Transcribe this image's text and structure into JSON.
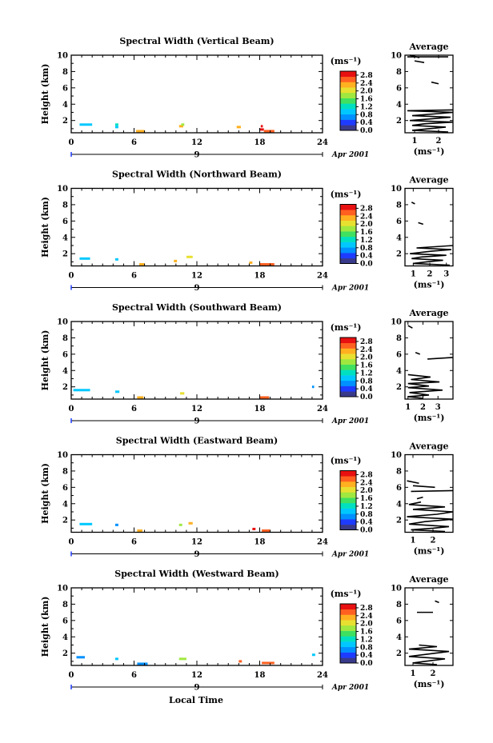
{
  "figure": {
    "x_axis_title": "Local Time",
    "colorbar_unit": "(ms⁻¹)",
    "colorbar_ticks": [
      "0.0",
      "0.4",
      "0.8",
      "1.2",
      "1.6",
      "2.0",
      "2.4",
      "2.8"
    ],
    "colorbar_range": [
      0,
      3.0
    ],
    "day_marker": "9",
    "date_label": "Apr 2001",
    "avg_title": "Average",
    "avg_xlabel": "(ms⁻¹)"
  },
  "colors": {
    "palette": [
      "#3a3a8c",
      "#1e3cff",
      "#0090ff",
      "#00c8ff",
      "#00e0c0",
      "#40e060",
      "#a0e840",
      "#e8e030",
      "#ffb020",
      "#ff6020",
      "#e81010"
    ]
  },
  "chart_data": [
    {
      "type": "heatmap",
      "title": "Spectral Width (Vertical Beam)",
      "ylabel": "Height (km)",
      "xlabel": "Local Time",
      "xlim": [
        0,
        24
      ],
      "xticks": [
        0,
        6,
        12,
        18,
        24
      ],
      "xtick_labels": [
        "0",
        "6",
        "12",
        "18",
        "24"
      ],
      "ylim": [
        0.5,
        10
      ],
      "yticks": [
        2,
        4,
        6,
        8,
        10
      ],
      "cells": [
        {
          "t": 0.8,
          "h": 1.5,
          "dt": 1.2,
          "v": 1.0
        },
        {
          "t": 4.2,
          "h": 1.5,
          "dt": 0.3,
          "v": 1.1
        },
        {
          "t": 4.2,
          "h": 1.2,
          "dt": 0.3,
          "v": 0.9
        },
        {
          "t": 6.2,
          "h": 0.7,
          "dt": 0.8,
          "v": 2.4
        },
        {
          "t": 10.3,
          "h": 1.3,
          "dt": 0.4,
          "v": 2.2
        },
        {
          "t": 10.5,
          "h": 1.5,
          "dt": 0.3,
          "v": 1.8
        },
        {
          "t": 15.8,
          "h": 1.2,
          "dt": 0.4,
          "v": 2.2
        },
        {
          "t": 18.0,
          "h": 0.9,
          "dt": 0.4,
          "v": 2.9
        },
        {
          "t": 18.4,
          "h": 0.7,
          "dt": 1.0,
          "v": 2.6
        },
        {
          "t": 18.1,
          "h": 1.3,
          "dt": 0.2,
          "v": 3.0
        }
      ],
      "avg": {
        "xlim": [
          0.6,
          2.6
        ],
        "xticks": [
          1,
          2
        ],
        "xtick_labels": [
          "1",
          "2"
        ],
        "profile": [
          [
            2.4,
            0.6
          ],
          [
            0.9,
            0.8
          ],
          [
            1.6,
            1.0
          ],
          [
            2.3,
            1.2
          ],
          [
            0.9,
            1.4
          ],
          [
            1.4,
            1.6
          ],
          [
            2.6,
            1.8
          ],
          [
            0.8,
            2.0
          ],
          [
            1.7,
            2.2
          ],
          [
            2.5,
            2.4
          ],
          [
            0.9,
            2.6
          ],
          [
            1.8,
            2.8
          ],
          [
            2.6,
            3.0
          ],
          [
            0.7,
            3.2
          ],
          [
            2.6,
            3.3
          ]
        ],
        "segments": [
          [
            [
              1.7,
              6.7
            ],
            [
              2.0,
              6.5
            ]
          ],
          [
            [
              1.0,
              9.3
            ],
            [
              1.4,
              9.1
            ]
          ],
          [
            [
              0.7,
              9.8
            ],
            [
              2.4,
              9.8
            ]
          ],
          [
            [
              0.8,
              10.0
            ],
            [
              1.2,
              9.7
            ]
          ]
        ]
      }
    },
    {
      "type": "heatmap",
      "title": "Spectral Width (Northward Beam)",
      "ylabel": "Height (km)",
      "xlabel": "Local Time",
      "xlim": [
        0,
        24
      ],
      "xticks": [
        0,
        6,
        12,
        18,
        24
      ],
      "xtick_labels": [
        "0",
        "6",
        "12",
        "18",
        "24"
      ],
      "ylim": [
        0.5,
        10
      ],
      "yticks": [
        2,
        4,
        6,
        8,
        10
      ],
      "cells": [
        {
          "t": 0.8,
          "h": 1.4,
          "dt": 1.0,
          "v": 0.9
        },
        {
          "t": 4.2,
          "h": 1.3,
          "dt": 0.3,
          "v": 1.0
        },
        {
          "t": 6.5,
          "h": 0.7,
          "dt": 0.5,
          "v": 2.2
        },
        {
          "t": 9.8,
          "h": 1.1,
          "dt": 0.3,
          "v": 2.3
        },
        {
          "t": 11.0,
          "h": 1.6,
          "dt": 0.6,
          "v": 2.0
        },
        {
          "t": 17.0,
          "h": 0.9,
          "dt": 0.3,
          "v": 2.4
        },
        {
          "t": 18.0,
          "h": 0.7,
          "dt": 1.4,
          "v": 2.5
        }
      ],
      "avg": {
        "xlim": [
          0.5,
          3.4
        ],
        "xticks": [
          1,
          2,
          3
        ],
        "xtick_labels": [
          "1",
          "2",
          "3"
        ],
        "profile": [
          [
            3.2,
            0.6
          ],
          [
            1.0,
            0.8
          ],
          [
            1.8,
            1.0
          ],
          [
            2.8,
            1.2
          ],
          [
            0.9,
            1.4
          ],
          [
            1.5,
            1.6
          ],
          [
            3.0,
            1.8
          ],
          [
            0.8,
            2.0
          ],
          [
            2.1,
            2.3
          ],
          [
            3.3,
            2.5
          ],
          [
            1.2,
            2.7
          ],
          [
            3.4,
            3.0
          ]
        ],
        "segments": [
          [
            [
              1.3,
              5.8
            ],
            [
              1.6,
              5.6
            ]
          ],
          [
            [
              0.9,
              8.3
            ],
            [
              1.1,
              8.1
            ]
          ]
        ]
      }
    },
    {
      "type": "heatmap",
      "title": "Spectral Width (Southward Beam)",
      "ylabel": "Height (km)",
      "xlabel": "Local Time",
      "xlim": [
        0,
        24
      ],
      "xticks": [
        0,
        6,
        12,
        18,
        24
      ],
      "xtick_labels": [
        "0",
        "6",
        "12",
        "18",
        "24"
      ],
      "ylim": [
        0.5,
        10
      ],
      "yticks": [
        2,
        4,
        6,
        8,
        10
      ],
      "cells": [
        {
          "t": 0.2,
          "h": 1.6,
          "dt": 1.6,
          "v": 0.9
        },
        {
          "t": 4.2,
          "h": 1.4,
          "dt": 0.4,
          "v": 1.0
        },
        {
          "t": 6.3,
          "h": 0.7,
          "dt": 0.6,
          "v": 2.3
        },
        {
          "t": 10.4,
          "h": 1.2,
          "dt": 0.4,
          "v": 2.0
        },
        {
          "t": 18.0,
          "h": 0.7,
          "dt": 0.9,
          "v": 2.6
        },
        {
          "t": 23.0,
          "h": 2.0,
          "dt": 0.2,
          "v": 0.8
        }
      ],
      "avg": {
        "xlim": [
          0.8,
          4.0
        ],
        "xticks": [
          1,
          2,
          3
        ],
        "xtick_labels": [
          "1",
          "2",
          "3"
        ],
        "profile": [
          [
            2.0,
            0.6
          ],
          [
            1.0,
            0.8
          ],
          [
            2.4,
            1.0
          ],
          [
            1.1,
            1.3
          ],
          [
            3.3,
            1.6
          ],
          [
            1.0,
            1.9
          ],
          [
            2.4,
            2.1
          ],
          [
            1.0,
            2.4
          ],
          [
            3.1,
            2.6
          ],
          [
            1.2,
            2.9
          ],
          [
            2.5,
            3.2
          ],
          [
            1.0,
            3.5
          ]
        ],
        "segments": [
          [
            [
              2.3,
              5.4
            ],
            [
              4.0,
              5.6
            ]
          ],
          [
            [
              1.5,
              6.2
            ],
            [
              1.8,
              6.0
            ]
          ],
          [
            [
              1.0,
              9.5
            ],
            [
              1.3,
              9.2
            ]
          ]
        ]
      }
    },
    {
      "type": "heatmap",
      "title": "Spectral Width (Eastward Beam)",
      "ylabel": "Height (km)",
      "xlabel": "Local Time",
      "xlim": [
        0,
        24
      ],
      "xticks": [
        0,
        6,
        12,
        18,
        24
      ],
      "xtick_labels": [
        "0",
        "6",
        "12",
        "18",
        "24"
      ],
      "ylim": [
        0.5,
        10
      ],
      "yticks": [
        2,
        4,
        6,
        8,
        10
      ],
      "cells": [
        {
          "t": 0.8,
          "h": 1.5,
          "dt": 1.2,
          "v": 0.9
        },
        {
          "t": 4.2,
          "h": 1.4,
          "dt": 0.3,
          "v": 0.8
        },
        {
          "t": 6.3,
          "h": 0.7,
          "dt": 0.5,
          "v": 2.3
        },
        {
          "t": 10.3,
          "h": 1.4,
          "dt": 0.3,
          "v": 1.9
        },
        {
          "t": 11.2,
          "h": 1.6,
          "dt": 0.4,
          "v": 2.2
        },
        {
          "t": 17.3,
          "h": 0.9,
          "dt": 0.3,
          "v": 2.8
        },
        {
          "t": 18.2,
          "h": 0.7,
          "dt": 0.8,
          "v": 2.6
        }
      ],
      "avg": {
        "xlim": [
          0.6,
          3.0
        ],
        "xticks": [
          1,
          2
        ],
        "xtick_labels": [
          "1",
          "2"
        ],
        "profile": [
          [
            2.6,
            0.6
          ],
          [
            0.9,
            0.8
          ],
          [
            2.0,
            1.0
          ],
          [
            2.8,
            1.2
          ],
          [
            0.8,
            1.5
          ],
          [
            1.6,
            1.8
          ],
          [
            3.0,
            2.1
          ],
          [
            0.7,
            2.4
          ],
          [
            2.2,
            2.7
          ],
          [
            3.0,
            3.0
          ],
          [
            1.0,
            3.3
          ],
          [
            2.6,
            3.6
          ],
          [
            0.8,
            3.9
          ],
          [
            1.4,
            4.2
          ]
        ],
        "segments": [
          [
            [
              0.9,
              5.5
            ],
            [
              3.0,
              5.6
            ]
          ],
          [
            [
              1.0,
              6.2
            ],
            [
              2.1,
              6.0
            ]
          ],
          [
            [
              1.2,
              4.6
            ],
            [
              1.5,
              4.8
            ]
          ],
          [
            [
              0.7,
              6.8
            ],
            [
              1.3,
              6.5
            ]
          ]
        ]
      }
    },
    {
      "type": "heatmap",
      "title": "Spectral Width (Westward Beam)",
      "ylabel": "Height (km)",
      "xlabel": "Local Time",
      "xlim": [
        0,
        24
      ],
      "xticks": [
        0,
        6,
        12,
        18,
        24
      ],
      "xtick_labels": [
        "0",
        "6",
        "12",
        "18",
        "24"
      ],
      "ylim": [
        0.5,
        10
      ],
      "yticks": [
        2,
        4,
        6,
        8,
        10
      ],
      "cells": [
        {
          "t": 0.5,
          "h": 1.5,
          "dt": 0.8,
          "v": 0.8
        },
        {
          "t": 4.2,
          "h": 1.3,
          "dt": 0.3,
          "v": 1.0
        },
        {
          "t": 6.3,
          "h": 0.7,
          "dt": 1.0,
          "v": 0.6
        },
        {
          "t": 10.3,
          "h": 1.3,
          "dt": 0.7,
          "v": 1.8
        },
        {
          "t": 16.0,
          "h": 1.0,
          "dt": 0.3,
          "v": 2.6
        },
        {
          "t": 18.2,
          "h": 0.8,
          "dt": 1.2,
          "v": 2.5
        },
        {
          "t": 23.0,
          "h": 1.8,
          "dt": 0.3,
          "v": 1.0
        }
      ],
      "avg": {
        "xlim": [
          0.6,
          3.0
        ],
        "xticks": [
          1,
          2
        ],
        "xtick_labels": [
          "1",
          "2"
        ],
        "profile": [
          [
            2.2,
            0.6
          ],
          [
            1.0,
            0.8
          ],
          [
            1.6,
            1.0
          ],
          [
            2.6,
            1.3
          ],
          [
            0.8,
            1.6
          ],
          [
            1.8,
            1.9
          ],
          [
            2.8,
            2.2
          ],
          [
            0.8,
            2.5
          ],
          [
            2.2,
            2.8
          ],
          [
            1.3,
            3.0
          ]
        ],
        "segments": [
          [
            [
              1.2,
              7.0
            ],
            [
              2.0,
              7.0
            ]
          ],
          [
            [
              2.1,
              8.4
            ],
            [
              2.3,
              8.2
            ]
          ]
        ]
      }
    }
  ]
}
